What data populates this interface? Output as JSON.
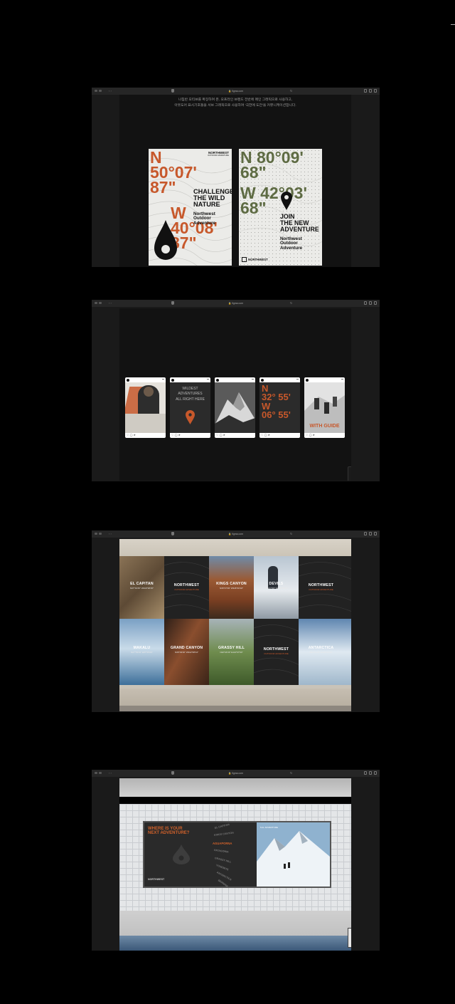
{
  "browser": {
    "url": "figma.com"
  },
  "section1": {
    "caption_lines": [
      "나침반 모티브를 확장하여 온, 오프라인 브랜드 전반에 메인 그래픽으로 사용하고,",
      "아웃도어 표시기호들을 서브 그래픽으로 사용하여 '극한에 도전'을 커뮤니케이션합니다."
    ],
    "poster1": {
      "coord_north": "N\n50°07'\n87\"",
      "coord_west": "W\n40°08'\n87\"",
      "brand_top": "NORTHWEST",
      "brand_sub": "OUTDOOR ADVENTURE",
      "headline": "CHALLENGE\nTHE WILD\nNATURE",
      "tagline": "Northwest\nOutdoor\nAdventure"
    },
    "poster2": {
      "coord_north": "N 80°09'\n68\"",
      "coord_west": "W 42°03'\n68\"",
      "headline": "JOIN\nTHE NEW\nADVENTURE",
      "tagline": "Northwest\nOutdoor\nAdventure",
      "brand_bottom": "NORTHWEST"
    },
    "colors": {
      "orange": "#c7582b",
      "olive": "#5e6b43"
    }
  },
  "section2": {
    "posts": [
      {
        "kind": "photo"
      },
      {
        "kind": "text",
        "text": "WILDEST\nADVENTURES\nALL RIGHT HERE"
      },
      {
        "kind": "photo"
      },
      {
        "kind": "coords",
        "text": "N\n32° 55'\nW\n06° 55'"
      },
      {
        "kind": "photo-label",
        "text": "WITH GUIDE"
      }
    ]
  },
  "section3": {
    "posters": [
      {
        "title": "EL CAPITAN",
        "sub": "N37°43'45\" W119°38'15\""
      },
      {
        "title": "NORTHWEST",
        "sub": "OUTDOOR ADVENTURE"
      },
      {
        "title": "KINGS CANYON",
        "sub": "N36°47'39\" W118°40'10\""
      },
      {
        "title": "DEVILS",
        "sub": "N45°17'29\" W109°43'59\""
      },
      {
        "title": "NORTHWEST",
        "sub": "OUTDOOR ADVENTURE"
      },
      {
        "title": "MAKALU",
        "sub": "N27°53'23\" E87°05'20\""
      },
      {
        "title": "GRAND CANYON",
        "sub": "N36°03'16\" W112°08'14\""
      },
      {
        "title": "GRASSY HILL",
        "sub": "N22°24'33\" E114°07'04\""
      },
      {
        "title": "NORTHWEST",
        "sub": "OUTDOOR ADVENTURE"
      },
      {
        "title": "ANTARCTICA",
        "sub": "S82°51'45\" E135°00'00\""
      }
    ]
  },
  "section4": {
    "billboard": {
      "title": "WHERE IS YOUR\nNEXT ADVENTURE?",
      "brand": "NORTHWEST",
      "list": [
        "EL CAPITAN",
        "KINGS CANYON",
        "AGUAPORNA",
        "PATAGONIA",
        "GRASSY HILL",
        "YOSEMITE",
        "ANTARCTICA",
        "BERNINA"
      ],
      "highlight": "AGUAPORNA",
      "right_logo": "N.E. ADVENTURE"
    }
  }
}
